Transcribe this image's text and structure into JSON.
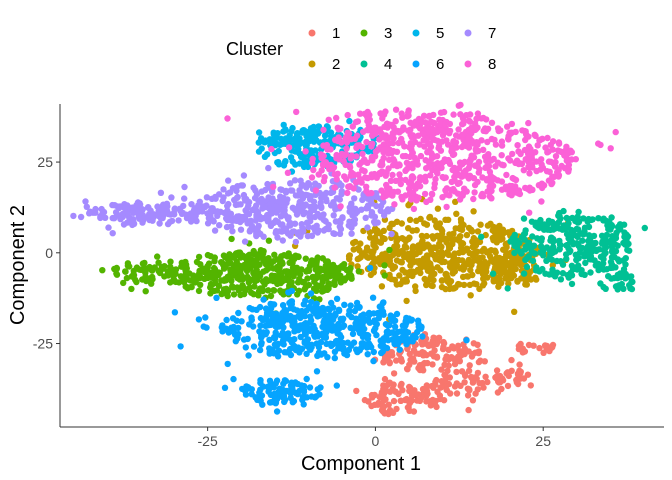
{
  "chart_data": {
    "type": "scatter",
    "title": "",
    "xlabel": "Component 1",
    "ylabel": "Component 2",
    "xlim": [
      -47,
      43
    ],
    "ylim": [
      -48,
      41
    ],
    "xticks": [
      -25,
      0,
      25
    ],
    "yticks": [
      25,
      0,
      -25
    ],
    "grid": false,
    "legend": {
      "title": "Cluster",
      "position": "top"
    },
    "series": [
      {
        "name": "1",
        "color": "#F8766D",
        "clusters": [
          {
            "cx": 9,
            "cy": -28,
            "rx": 8,
            "ry": 5,
            "n": 120
          },
          {
            "cx": 4,
            "cy": -40,
            "rx": 6,
            "ry": 5,
            "n": 90
          },
          {
            "cx": 14,
            "cy": -36,
            "rx": 6,
            "ry": 3.5,
            "n": 60
          },
          {
            "cx": 20,
            "cy": -34,
            "rx": 3,
            "ry": 2.5,
            "n": 25
          },
          {
            "cx": 24,
            "cy": -26,
            "rx": 3,
            "ry": 1.5,
            "n": 18
          }
        ]
      },
      {
        "name": "2",
        "color": "#C49A00",
        "clusters": [
          {
            "cx": 10,
            "cy": 0,
            "rx": 14,
            "ry": 10,
            "n": 500
          },
          {
            "cx": 20,
            "cy": -5,
            "rx": 4,
            "ry": 5,
            "n": 70
          }
        ]
      },
      {
        "name": "3",
        "color": "#53B400",
        "clusters": [
          {
            "cx": -17,
            "cy": -6,
            "rx": 14,
            "ry": 6.5,
            "n": 420
          },
          {
            "cx": -33,
            "cy": -5,
            "rx": 6,
            "ry": 3,
            "n": 60
          }
        ]
      },
      {
        "name": "4",
        "color": "#00C094",
        "clusters": [
          {
            "cx": 29,
            "cy": 2,
            "rx": 9,
            "ry": 9,
            "n": 300
          },
          {
            "cx": 36,
            "cy": -8,
            "rx": 3,
            "ry": 2.5,
            "n": 30
          }
        ]
      },
      {
        "name": "5",
        "color": "#00B6EB",
        "clusters": [
          {
            "cx": -9,
            "cy": 29,
            "rx": 9,
            "ry": 6,
            "n": 220
          }
        ]
      },
      {
        "name": "6",
        "color": "#06A4FF",
        "clusters": [
          {
            "cx": -8,
            "cy": -21,
            "rx": 15,
            "ry": 8,
            "n": 450
          },
          {
            "cx": -14,
            "cy": -38,
            "rx": 6,
            "ry": 3.5,
            "n": 90
          }
        ]
      },
      {
        "name": "7",
        "color": "#A58AFF",
        "clusters": [
          {
            "cx": -33,
            "cy": 11,
            "rx": 10,
            "ry": 3,
            "n": 150
          },
          {
            "cx": -12,
            "cy": 12,
            "rx": 15,
            "ry": 8,
            "n": 380
          }
        ]
      },
      {
        "name": "8",
        "color": "#FB61D7",
        "clusters": [
          {
            "cx": 10,
            "cy": 25,
            "rx": 20,
            "ry": 11,
            "n": 620
          },
          {
            "cx": 5,
            "cy": 36,
            "rx": 12,
            "ry": 3.5,
            "n": 100
          }
        ]
      }
    ]
  }
}
